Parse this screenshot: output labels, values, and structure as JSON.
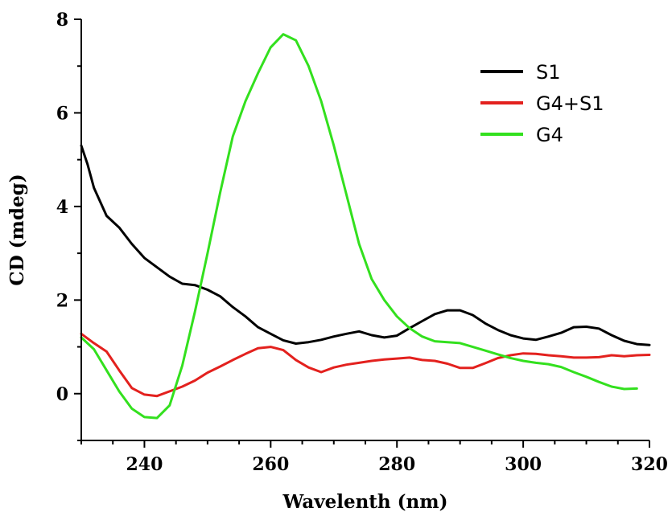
{
  "chart_data": {
    "type": "line",
    "title": "",
    "xlabel": "Wavelenth (nm)",
    "ylabel": "CD (mdeg)",
    "xlim": [
      230,
      320
    ],
    "ylim": [
      -1,
      8
    ],
    "x_ticks": [
      240,
      260,
      280,
      300,
      320
    ],
    "y_ticks": [
      0,
      2,
      4,
      6,
      8
    ],
    "grid": false,
    "legend_position": "top-right",
    "series": [
      {
        "name": "S1",
        "color": "#000000",
        "points": [
          [
            230,
            5.3
          ],
          [
            231,
            4.9
          ],
          [
            232,
            4.4
          ],
          [
            234,
            3.8
          ],
          [
            236,
            3.55
          ],
          [
            238,
            3.2
          ],
          [
            240,
            2.9
          ],
          [
            242,
            2.7
          ],
          [
            244,
            2.5
          ],
          [
            246,
            2.35
          ],
          [
            248,
            2.32
          ],
          [
            250,
            2.22
          ],
          [
            252,
            2.08
          ],
          [
            254,
            1.85
          ],
          [
            256,
            1.65
          ],
          [
            258,
            1.42
          ],
          [
            260,
            1.28
          ],
          [
            262,
            1.14
          ],
          [
            264,
            1.07
          ],
          [
            266,
            1.1
          ],
          [
            268,
            1.15
          ],
          [
            270,
            1.22
          ],
          [
            272,
            1.28
          ],
          [
            274,
            1.33
          ],
          [
            276,
            1.25
          ],
          [
            278,
            1.2
          ],
          [
            280,
            1.24
          ],
          [
            282,
            1.4
          ],
          [
            284,
            1.55
          ],
          [
            286,
            1.7
          ],
          [
            288,
            1.78
          ],
          [
            290,
            1.78
          ],
          [
            292,
            1.68
          ],
          [
            294,
            1.5
          ],
          [
            296,
            1.36
          ],
          [
            298,
            1.25
          ],
          [
            300,
            1.18
          ],
          [
            302,
            1.15
          ],
          [
            304,
            1.22
          ],
          [
            306,
            1.3
          ],
          [
            308,
            1.42
          ],
          [
            310,
            1.43
          ],
          [
            312,
            1.39
          ],
          [
            314,
            1.25
          ],
          [
            316,
            1.13
          ],
          [
            318,
            1.06
          ],
          [
            320,
            1.04
          ]
        ]
      },
      {
        "name": "G4+S1",
        "color": "#e3211e",
        "points": [
          [
            230,
            1.28
          ],
          [
            232,
            1.08
          ],
          [
            234,
            0.9
          ],
          [
            236,
            0.5
          ],
          [
            238,
            0.12
          ],
          [
            240,
            -0.02
          ],
          [
            242,
            -0.05
          ],
          [
            244,
            0.05
          ],
          [
            246,
            0.15
          ],
          [
            248,
            0.28
          ],
          [
            250,
            0.45
          ],
          [
            252,
            0.58
          ],
          [
            254,
            0.72
          ],
          [
            256,
            0.85
          ],
          [
            258,
            0.97
          ],
          [
            260,
            1.0
          ],
          [
            262,
            0.93
          ],
          [
            264,
            0.72
          ],
          [
            266,
            0.56
          ],
          [
            268,
            0.46
          ],
          [
            270,
            0.56
          ],
          [
            272,
            0.62
          ],
          [
            274,
            0.66
          ],
          [
            276,
            0.7
          ],
          [
            278,
            0.73
          ],
          [
            280,
            0.75
          ],
          [
            282,
            0.77
          ],
          [
            284,
            0.72
          ],
          [
            286,
            0.7
          ],
          [
            288,
            0.64
          ],
          [
            290,
            0.55
          ],
          [
            292,
            0.55
          ],
          [
            294,
            0.65
          ],
          [
            296,
            0.76
          ],
          [
            298,
            0.82
          ],
          [
            300,
            0.86
          ],
          [
            302,
            0.85
          ],
          [
            304,
            0.82
          ],
          [
            306,
            0.8
          ],
          [
            308,
            0.77
          ],
          [
            310,
            0.77
          ],
          [
            312,
            0.78
          ],
          [
            314,
            0.82
          ],
          [
            316,
            0.8
          ],
          [
            318,
            0.82
          ],
          [
            320,
            0.83
          ]
        ]
      },
      {
        "name": "G4",
        "color": "#33e01e",
        "points": [
          [
            230,
            1.2
          ],
          [
            232,
            0.95
          ],
          [
            234,
            0.5
          ],
          [
            236,
            0.05
          ],
          [
            238,
            -0.32
          ],
          [
            240,
            -0.5
          ],
          [
            242,
            -0.52
          ],
          [
            244,
            -0.25
          ],
          [
            246,
            0.6
          ],
          [
            248,
            1.75
          ],
          [
            250,
            3.0
          ],
          [
            252,
            4.3
          ],
          [
            254,
            5.5
          ],
          [
            256,
            6.25
          ],
          [
            258,
            6.85
          ],
          [
            260,
            7.4
          ],
          [
            262,
            7.68
          ],
          [
            264,
            7.55
          ],
          [
            266,
            7.0
          ],
          [
            268,
            6.25
          ],
          [
            270,
            5.3
          ],
          [
            272,
            4.25
          ],
          [
            274,
            3.2
          ],
          [
            276,
            2.45
          ],
          [
            278,
            2.0
          ],
          [
            280,
            1.65
          ],
          [
            282,
            1.4
          ],
          [
            284,
            1.22
          ],
          [
            286,
            1.12
          ],
          [
            288,
            1.1
          ],
          [
            290,
            1.08
          ],
          [
            292,
            1.0
          ],
          [
            294,
            0.92
          ],
          [
            296,
            0.84
          ],
          [
            298,
            0.76
          ],
          [
            300,
            0.7
          ],
          [
            302,
            0.66
          ],
          [
            304,
            0.63
          ],
          [
            306,
            0.57
          ],
          [
            308,
            0.46
          ],
          [
            310,
            0.36
          ],
          [
            312,
            0.25
          ],
          [
            314,
            0.15
          ],
          [
            316,
            0.1
          ],
          [
            318,
            0.11
          ]
        ]
      }
    ]
  }
}
